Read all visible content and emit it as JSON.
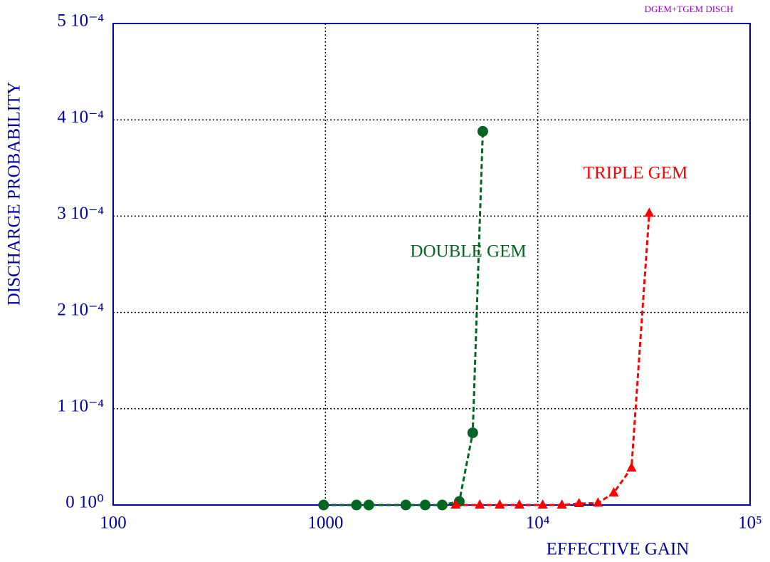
{
  "chart_data": {
    "type": "line",
    "x_label": "EFFECTIVE GAIN",
    "y_label": "DISCHARGE PROBABILITY",
    "annotation": "DGEM+TGEM DISCH",
    "xscale": "log",
    "xlim": [
      100,
      100000
    ],
    "xticks": [
      100,
      1000,
      {
        "value": 10000,
        "label": "10⁴"
      },
      {
        "value": 100000,
        "label": "10⁵"
      }
    ],
    "ylim": [
      0,
      0.0005
    ],
    "yticks": [
      {
        "value": 0,
        "label": "0 10⁰"
      },
      {
        "value": 0.0001,
        "label": "1 10⁻⁴"
      },
      {
        "value": 0.0002,
        "label": "2 10⁻⁴"
      },
      {
        "value": 0.0003,
        "label": "3 10⁻⁴"
      },
      {
        "value": 0.0004,
        "label": "4 10⁻⁴"
      },
      {
        "value": 0.0005,
        "label": "5 10⁻⁴"
      }
    ],
    "grid": true,
    "series": [
      {
        "name": "DOUBLE GEM",
        "color": "#006622",
        "marker": "circle",
        "x": [
          980,
          1400,
          1600,
          2390,
          2950,
          3550,
          4270,
          4940,
          5510
        ],
        "values": [
          0,
          0,
          0,
          0,
          0,
          0,
          3.7e-06,
          7.5e-05,
          0.000388
        ]
      },
      {
        "name": "TRIPLE GEM",
        "color": "#ff0000",
        "marker": "triangle",
        "x": [
          4100,
          5330,
          6620,
          8190,
          10550,
          12990,
          15640,
          19210,
          22790,
          27630,
          33500
        ],
        "values": [
          0,
          0,
          0,
          0,
          0,
          0,
          1.5e-06,
          2e-06,
          1.26e-05,
          3.85e-05,
          0.000303
        ]
      }
    ]
  }
}
